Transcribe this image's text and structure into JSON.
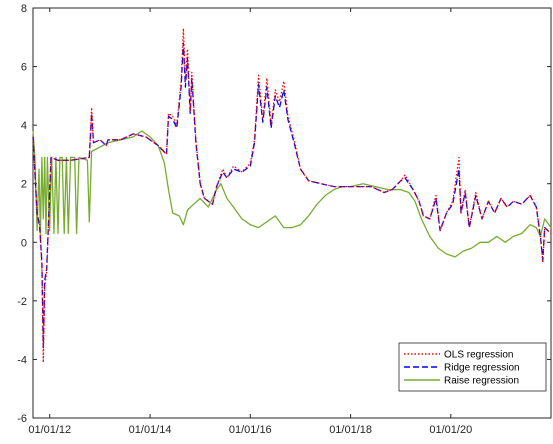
{
  "chart_data": {
    "type": "line",
    "title": "",
    "xlabel": "",
    "ylabel": "",
    "xlim": [
      "2011-09-01",
      "2021-12-31"
    ],
    "ylim": [
      -6,
      8
    ],
    "x_ticks": [
      "2012-01-01",
      "2014-01-01",
      "2016-01-01",
      "2018-01-01",
      "2020-01-01"
    ],
    "x_tick_labels": [
      "01/01/12",
      "01/01/14",
      "01/01/16",
      "01/01/18",
      "01/01/20"
    ],
    "y_ticks": [
      -6,
      -4,
      -2,
      0,
      2,
      4,
      6,
      8
    ],
    "y_tick_labels": [
      "-6",
      "-4",
      "-2",
      "0",
      "2",
      "4",
      "6",
      "8"
    ],
    "grid": false,
    "legend_position": "bottom-right",
    "series": [
      {
        "name": "OLS regression",
        "color": "#ff0000",
        "style": "dotted",
        "points": [
          [
            "2011-09-01",
            3.6
          ],
          [
            "2011-10-01",
            1.0
          ],
          [
            "2011-10-20",
            0.6
          ],
          [
            "2011-11-05",
            -0.8
          ],
          [
            "2011-11-15",
            -4.1
          ],
          [
            "2011-11-25",
            -1.5
          ],
          [
            "2011-12-10",
            -1.0
          ],
          [
            "2012-01-10",
            2.9
          ],
          [
            "2012-03-01",
            2.8
          ],
          [
            "2012-06-01",
            2.8
          ],
          [
            "2012-10-15",
            2.9
          ],
          [
            "2012-11-01",
            4.6
          ],
          [
            "2012-11-15",
            3.4
          ],
          [
            "2013-01-01",
            3.5
          ],
          [
            "2013-02-15",
            3.3
          ],
          [
            "2013-03-01",
            3.5
          ],
          [
            "2013-06-01",
            3.5
          ],
          [
            "2013-09-01",
            3.7
          ],
          [
            "2013-12-01",
            3.6
          ],
          [
            "2014-03-01",
            3.3
          ],
          [
            "2014-05-01",
            3.0
          ],
          [
            "2014-05-15",
            4.4
          ],
          [
            "2014-06-15",
            4.3
          ],
          [
            "2014-07-15",
            4.0
          ],
          [
            "2014-08-15",
            5.5
          ],
          [
            "2014-09-01",
            7.3
          ],
          [
            "2014-09-15",
            5.5
          ],
          [
            "2014-10-01",
            6.6
          ],
          [
            "2014-10-20",
            4.5
          ],
          [
            "2014-11-01",
            5.8
          ],
          [
            "2014-12-01",
            3.5
          ],
          [
            "2015-01-01",
            2.0
          ],
          [
            "2015-02-01",
            1.5
          ],
          [
            "2015-04-01",
            1.3
          ],
          [
            "2015-05-01",
            1.9
          ],
          [
            "2015-06-15",
            2.5
          ],
          [
            "2015-07-15",
            2.2
          ],
          [
            "2015-09-01",
            2.6
          ],
          [
            "2015-11-01",
            2.4
          ],
          [
            "2016-01-01",
            2.7
          ],
          [
            "2016-02-01",
            3.5
          ],
          [
            "2016-03-01",
            5.7
          ],
          [
            "2016-04-01",
            4.2
          ],
          [
            "2016-05-01",
            5.6
          ],
          [
            "2016-06-01",
            4.0
          ],
          [
            "2016-07-01",
            5.2
          ],
          [
            "2016-08-01",
            4.8
          ],
          [
            "2016-09-01",
            5.5
          ],
          [
            "2016-10-01",
            4.3
          ],
          [
            "2016-11-15",
            3.5
          ],
          [
            "2017-01-01",
            2.5
          ],
          [
            "2017-03-01",
            2.1
          ],
          [
            "2017-06-01",
            2.0
          ],
          [
            "2017-09-01",
            1.9
          ],
          [
            "2017-12-01",
            1.9
          ],
          [
            "2018-03-01",
            1.9
          ],
          [
            "2018-06-01",
            1.9
          ],
          [
            "2018-09-01",
            1.7
          ],
          [
            "2018-11-01",
            1.8
          ],
          [
            "2019-01-01",
            2.1
          ],
          [
            "2019-02-01",
            2.3
          ],
          [
            "2019-04-01",
            1.8
          ],
          [
            "2019-05-15",
            1.4
          ],
          [
            "2019-06-15",
            0.9
          ],
          [
            "2019-08-01",
            0.8
          ],
          [
            "2019-09-15",
            1.6
          ],
          [
            "2019-10-15",
            0.4
          ],
          [
            "2019-12-01",
            1.0
          ],
          [
            "2020-01-15",
            1.4
          ],
          [
            "2020-03-01",
            2.9
          ],
          [
            "2020-03-15",
            1.0
          ],
          [
            "2020-04-15",
            1.8
          ],
          [
            "2020-05-15",
            0.5
          ],
          [
            "2020-07-01",
            1.7
          ],
          [
            "2020-08-15",
            0.8
          ],
          [
            "2020-10-01",
            1.4
          ],
          [
            "2020-11-15",
            1.0
          ],
          [
            "2021-01-01",
            1.5
          ],
          [
            "2021-02-15",
            1.2
          ],
          [
            "2021-04-01",
            1.4
          ],
          [
            "2021-06-01",
            1.3
          ],
          [
            "2021-08-01",
            1.6
          ],
          [
            "2021-09-15",
            1.2
          ],
          [
            "2021-10-15",
            0.2
          ],
          [
            "2021-11-01",
            -0.7
          ],
          [
            "2021-11-15",
            0.5
          ],
          [
            "2021-12-31",
            0.3
          ]
        ]
      },
      {
        "name": "Ridge regression",
        "color": "#0000ff",
        "style": "dashed",
        "points": [
          [
            "2011-09-01",
            3.6
          ],
          [
            "2011-10-01",
            1.0
          ],
          [
            "2011-10-20",
            0.5
          ],
          [
            "2011-11-05",
            -0.7
          ],
          [
            "2011-11-15",
            -3.6
          ],
          [
            "2011-11-25",
            -1.3
          ],
          [
            "2011-12-10",
            -0.9
          ],
          [
            "2012-01-10",
            2.9
          ],
          [
            "2012-03-01",
            2.8
          ],
          [
            "2012-06-01",
            2.8
          ],
          [
            "2012-10-15",
            2.9
          ],
          [
            "2012-11-01",
            4.4
          ],
          [
            "2012-11-15",
            3.4
          ],
          [
            "2013-01-01",
            3.5
          ],
          [
            "2013-02-15",
            3.3
          ],
          [
            "2013-03-01",
            3.5
          ],
          [
            "2013-06-01",
            3.5
          ],
          [
            "2013-09-01",
            3.7
          ],
          [
            "2013-12-01",
            3.6
          ],
          [
            "2014-03-01",
            3.3
          ],
          [
            "2014-05-01",
            3.0
          ],
          [
            "2014-05-15",
            4.3
          ],
          [
            "2014-06-15",
            4.2
          ],
          [
            "2014-07-15",
            3.9
          ],
          [
            "2014-08-15",
            5.3
          ],
          [
            "2014-09-01",
            6.8
          ],
          [
            "2014-09-15",
            5.3
          ],
          [
            "2014-10-01",
            6.3
          ],
          [
            "2014-10-20",
            4.4
          ],
          [
            "2014-11-01",
            5.6
          ],
          [
            "2014-12-01",
            3.4
          ],
          [
            "2015-01-01",
            2.0
          ],
          [
            "2015-02-01",
            1.5
          ],
          [
            "2015-04-01",
            1.3
          ],
          [
            "2015-05-01",
            1.9
          ],
          [
            "2015-06-15",
            2.4
          ],
          [
            "2015-07-15",
            2.2
          ],
          [
            "2015-09-01",
            2.5
          ],
          [
            "2015-11-01",
            2.4
          ],
          [
            "2016-01-01",
            2.6
          ],
          [
            "2016-02-01",
            3.4
          ],
          [
            "2016-03-01",
            5.4
          ],
          [
            "2016-04-01",
            4.1
          ],
          [
            "2016-05-01",
            5.3
          ],
          [
            "2016-06-01",
            3.9
          ],
          [
            "2016-07-01",
            5.0
          ],
          [
            "2016-08-01",
            4.6
          ],
          [
            "2016-09-01",
            5.2
          ],
          [
            "2016-10-01",
            4.2
          ],
          [
            "2016-11-15",
            3.4
          ],
          [
            "2017-01-01",
            2.5
          ],
          [
            "2017-03-01",
            2.1
          ],
          [
            "2017-06-01",
            2.0
          ],
          [
            "2017-09-01",
            1.9
          ],
          [
            "2017-12-01",
            1.9
          ],
          [
            "2018-03-01",
            1.9
          ],
          [
            "2018-06-01",
            1.9
          ],
          [
            "2018-09-01",
            1.7
          ],
          [
            "2018-11-01",
            1.8
          ],
          [
            "2019-01-01",
            2.1
          ],
          [
            "2019-02-01",
            2.2
          ],
          [
            "2019-04-01",
            1.8
          ],
          [
            "2019-05-15",
            1.4
          ],
          [
            "2019-06-15",
            0.9
          ],
          [
            "2019-08-01",
            0.8
          ],
          [
            "2019-09-15",
            1.5
          ],
          [
            "2019-10-15",
            0.4
          ],
          [
            "2019-12-01",
            1.0
          ],
          [
            "2020-01-15",
            1.3
          ],
          [
            "2020-03-01",
            2.5
          ],
          [
            "2020-03-15",
            1.0
          ],
          [
            "2020-04-15",
            1.7
          ],
          [
            "2020-05-15",
            0.5
          ],
          [
            "2020-07-01",
            1.6
          ],
          [
            "2020-08-15",
            0.8
          ],
          [
            "2020-10-01",
            1.4
          ],
          [
            "2020-11-15",
            1.0
          ],
          [
            "2021-01-01",
            1.5
          ],
          [
            "2021-02-15",
            1.2
          ],
          [
            "2021-04-01",
            1.4
          ],
          [
            "2021-06-01",
            1.3
          ],
          [
            "2021-08-01",
            1.6
          ],
          [
            "2021-09-15",
            1.2
          ],
          [
            "2021-10-15",
            0.2
          ],
          [
            "2021-11-01",
            -0.6
          ],
          [
            "2021-11-15",
            0.5
          ],
          [
            "2021-12-31",
            0.3
          ]
        ]
      },
      {
        "name": "Raise regression",
        "color": "#77ac30",
        "style": "solid",
        "points": [
          [
            "2011-09-01",
            3.8
          ],
          [
            "2011-09-15",
            2.9
          ],
          [
            "2011-10-01",
            0.4
          ],
          [
            "2011-10-15",
            2.5
          ],
          [
            "2011-10-25",
            0.3
          ],
          [
            "2011-11-05",
            2.9
          ],
          [
            "2011-11-15",
            0.8
          ],
          [
            "2011-11-25",
            2.9
          ],
          [
            "2011-12-05",
            0.3
          ],
          [
            "2011-12-15",
            2.9
          ],
          [
            "2011-12-31",
            0.4
          ],
          [
            "2012-01-15",
            2.9
          ],
          [
            "2012-02-01",
            0.3
          ],
          [
            "2012-02-15",
            2.9
          ],
          [
            "2012-03-01",
            0.3
          ],
          [
            "2012-03-15",
            2.9
          ],
          [
            "2012-04-01",
            2.9
          ],
          [
            "2012-04-15",
            0.3
          ],
          [
            "2012-05-01",
            2.9
          ],
          [
            "2012-05-15",
            0.3
          ],
          [
            "2012-06-01",
            2.9
          ],
          [
            "2012-07-01",
            2.9
          ],
          [
            "2012-07-15",
            0.3
          ],
          [
            "2012-08-01",
            2.9
          ],
          [
            "2012-10-01",
            2.8
          ],
          [
            "2012-10-15",
            0.7
          ],
          [
            "2012-11-01",
            3.1
          ],
          [
            "2013-03-01",
            3.4
          ],
          [
            "2013-06-01",
            3.5
          ],
          [
            "2013-09-01",
            3.6
          ],
          [
            "2013-11-01",
            3.8
          ],
          [
            "2014-01-01",
            3.6
          ],
          [
            "2014-03-01",
            3.3
          ],
          [
            "2014-04-15",
            2.7
          ],
          [
            "2014-05-15",
            1.8
          ],
          [
            "2014-06-15",
            1.0
          ],
          [
            "2014-08-01",
            0.9
          ],
          [
            "2014-09-01",
            0.6
          ],
          [
            "2014-10-01",
            1.1
          ],
          [
            "2014-11-15",
            1.3
          ],
          [
            "2015-01-01",
            1.5
          ],
          [
            "2015-03-01",
            1.2
          ],
          [
            "2015-05-01",
            1.8
          ],
          [
            "2015-06-01",
            2.0
          ],
          [
            "2015-07-15",
            1.5
          ],
          [
            "2015-09-01",
            1.2
          ],
          [
            "2015-11-01",
            0.8
          ],
          [
            "2016-01-01",
            0.6
          ],
          [
            "2016-03-01",
            0.5
          ],
          [
            "2016-05-01",
            0.7
          ],
          [
            "2016-07-01",
            0.9
          ],
          [
            "2016-09-01",
            0.5
          ],
          [
            "2016-11-01",
            0.5
          ],
          [
            "2017-01-01",
            0.6
          ],
          [
            "2017-03-01",
            0.9
          ],
          [
            "2017-05-01",
            1.3
          ],
          [
            "2017-07-01",
            1.6
          ],
          [
            "2017-09-01",
            1.8
          ],
          [
            "2017-11-01",
            1.9
          ],
          [
            "2018-01-01",
            1.9
          ],
          [
            "2018-04-01",
            2.0
          ],
          [
            "2018-07-01",
            1.9
          ],
          [
            "2018-10-01",
            1.8
          ],
          [
            "2019-01-01",
            1.8
          ],
          [
            "2019-03-01",
            1.7
          ],
          [
            "2019-04-15",
            1.4
          ],
          [
            "2019-06-01",
            0.8
          ],
          [
            "2019-08-01",
            0.2
          ],
          [
            "2019-10-01",
            -0.2
          ],
          [
            "2019-12-01",
            -0.4
          ],
          [
            "2020-02-01",
            -0.5
          ],
          [
            "2020-04-01",
            -0.3
          ],
          [
            "2020-06-01",
            -0.2
          ],
          [
            "2020-08-01",
            0.0
          ],
          [
            "2020-10-01",
            0.0
          ],
          [
            "2020-12-01",
            0.2
          ],
          [
            "2021-02-01",
            0.0
          ],
          [
            "2021-04-01",
            0.2
          ],
          [
            "2021-06-01",
            0.3
          ],
          [
            "2021-08-01",
            0.6
          ],
          [
            "2021-09-15",
            0.5
          ],
          [
            "2021-10-15",
            0.2
          ],
          [
            "2021-11-15",
            0.8
          ],
          [
            "2021-12-31",
            0.5
          ]
        ]
      }
    ]
  }
}
